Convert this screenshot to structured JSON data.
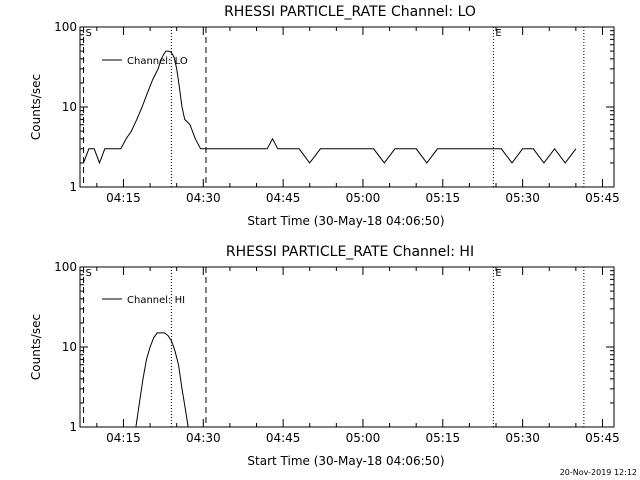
{
  "footer_stamp": "20-Nov-2019 12:12",
  "chart_data": [
    {
      "type": "line",
      "title": "RHESSI PARTICLE_RATE Channel: LO",
      "xlabel": "Start Time (30-May-18 04:06:50)",
      "ylabel": "Counts/sec",
      "y_scale": "log",
      "ylim": [
        1,
        100
      ],
      "yticks": [
        1,
        10,
        100
      ],
      "ytick_labels": [
        "1",
        "10",
        "100"
      ],
      "xlim": [
        "04:06:50",
        "05:47:10"
      ],
      "xticks": [
        "04:15",
        "04:30",
        "04:45",
        "05:00",
        "05:15",
        "05:30",
        "05:45"
      ],
      "legend": {
        "placement": "top-left",
        "entries": [
          "Channel: LO"
        ]
      },
      "markers": [
        {
          "time": "04:07:30",
          "style": "dashed",
          "label": "S"
        },
        {
          "time": "04:24:00",
          "style": "dotted",
          "label": ""
        },
        {
          "time": "04:30:30",
          "style": "dashed",
          "label": ""
        },
        {
          "time": "05:24:30",
          "style": "dotted",
          "label": "E"
        },
        {
          "time": "05:41:30",
          "style": "dotted",
          "label": ""
        }
      ],
      "series": [
        {
          "name": "Channel: LO",
          "time": [
            "04:07:30",
            "04:08:30",
            "04:09:30",
            "04:10:30",
            "04:11:30",
            "04:12:30",
            "04:13:30",
            "04:14:30",
            "04:15:30",
            "04:16:30",
            "04:17:30",
            "04:18:30",
            "04:19:30",
            "04:20:30",
            "04:21:30",
            "04:22:00",
            "04:22:30",
            "04:23:00",
            "04:23:30",
            "04:24:00",
            "04:24:30",
            "04:25:00",
            "04:25:30",
            "04:26:00",
            "04:26:30",
            "04:27:30",
            "04:28:30",
            "04:29:30",
            "04:30:30",
            "04:32:00",
            "04:34:00",
            "04:36:00",
            "04:38:00",
            "04:40:00",
            "04:42:00",
            "04:43:00",
            "04:44:00",
            "04:46:00",
            "04:48:00",
            "04:50:00",
            "04:52:00",
            "04:54:00",
            "04:56:00",
            "04:58:00",
            "05:00:00",
            "05:02:00",
            "05:04:00",
            "05:06:00",
            "05:08:00",
            "05:10:00",
            "05:12:00",
            "05:14:00",
            "05:16:00",
            "05:18:00",
            "05:20:00",
            "05:22:00",
            "05:24:00",
            "05:26:00",
            "05:28:00",
            "05:30:00",
            "05:32:00",
            "05:34:00",
            "05:36:00",
            "05:38:00",
            "05:40:00"
          ],
          "values": [
            2,
            3,
            3,
            2,
            3,
            3,
            3,
            3,
            4,
            5,
            7,
            10,
            15,
            22,
            30,
            38,
            45,
            50,
            50,
            48,
            42,
            30,
            18,
            10,
            7,
            6,
            4,
            3,
            3,
            3,
            3,
            3,
            3,
            3,
            3,
            4,
            3,
            3,
            3,
            2,
            3,
            3,
            3,
            3,
            3,
            3,
            2,
            3,
            3,
            3,
            2,
            3,
            3,
            3,
            3,
            3,
            3,
            3,
            2,
            3,
            3,
            2,
            3,
            2,
            3
          ]
        }
      ]
    },
    {
      "type": "line",
      "title": "RHESSI PARTICLE_RATE Channel: HI",
      "xlabel": "Start Time (30-May-18 04:06:50)",
      "ylabel": "Counts/sec",
      "y_scale": "log",
      "ylim": [
        1,
        100
      ],
      "yticks": [
        1,
        10,
        100
      ],
      "ytick_labels": [
        "1",
        "10",
        "100"
      ],
      "xlim": [
        "04:06:50",
        "05:47:10"
      ],
      "xticks": [
        "04:15",
        "04:30",
        "04:45",
        "05:00",
        "05:15",
        "05:30",
        "05:45"
      ],
      "legend": {
        "placement": "top-left",
        "entries": [
          "Channel: HI"
        ]
      },
      "markers": [
        {
          "time": "04:07:30",
          "style": "dashed",
          "label": "S"
        },
        {
          "time": "04:24:00",
          "style": "dotted",
          "label": ""
        },
        {
          "time": "04:30:30",
          "style": "dashed",
          "label": ""
        },
        {
          "time": "05:24:30",
          "style": "dotted",
          "label": "E"
        },
        {
          "time": "05:41:30",
          "style": "dotted",
          "label": ""
        }
      ],
      "series": [
        {
          "name": "Channel: HI",
          "time": [
            "04:17:20",
            "04:18:00",
            "04:18:40",
            "04:19:20",
            "04:20:00",
            "04:20:40",
            "04:21:20",
            "04:22:00",
            "04:22:40",
            "04:23:20",
            "04:24:00",
            "04:24:40",
            "04:25:20",
            "04:26:00",
            "04:26:40",
            "04:27:10"
          ],
          "values": [
            1,
            2,
            4,
            7,
            10,
            13,
            15,
            15,
            15,
            14,
            12,
            9,
            6,
            3,
            1.6,
            1
          ]
        }
      ]
    }
  ]
}
